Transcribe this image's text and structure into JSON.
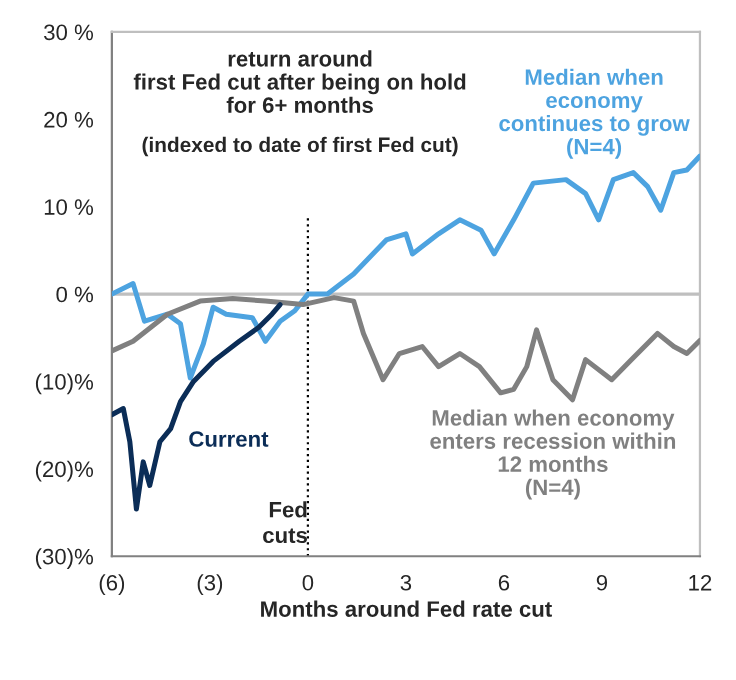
{
  "chart_data": {
    "type": "line",
    "title": "return around\nfirst Fed cut after being on hold\nfor 6+ months",
    "subtitle": "(indexed to date of first Fed cut)",
    "xlabel": "Months around Fed rate cut",
    "xlim": [
      -6,
      12
    ],
    "xticks": [
      {
        "value": -6,
        "label": "(6)"
      },
      {
        "value": -3,
        "label": "(3)"
      },
      0,
      3,
      6,
      9,
      12
    ],
    "ylim": [
      -30,
      30
    ],
    "yticks": [
      {
        "value": -30,
        "label": "(30)%"
      },
      {
        "value": -20,
        "label": "(20)%"
      },
      {
        "value": -10,
        "label": "(10)%"
      },
      {
        "value": 0,
        "label": "0 %"
      },
      {
        "value": 10,
        "label": "10 %"
      },
      {
        "value": 20,
        "label": "20 %"
      },
      {
        "value": 30,
        "label": "30 %"
      }
    ],
    "grid": false,
    "legend": false,
    "line_style": "solid",
    "ref_lines": [
      {
        "axis": "y",
        "value": 0,
        "label": null,
        "color": "#bfbfbf",
        "line_style": "solid"
      },
      {
        "axis": "x",
        "value": 0,
        "label": "Fed\ncuts",
        "color": "#000000",
        "line_style": "dotted"
      }
    ],
    "series": [
      {
        "name": "Median when\neconomy\ncontinues to grow\n(N=4)",
        "color": "#4da3e0",
        "x": [
          -6,
          -5.35,
          -5.0,
          -4.3,
          -3.9,
          -3.6,
          -3.2,
          -2.9,
          -2.5,
          -1.7,
          -1.3,
          -0.85,
          -0.4,
          0,
          0.6,
          1.4,
          2.4,
          3.0,
          3.2,
          4.0,
          4.65,
          5.3,
          5.7,
          6.3,
          6.9,
          7.9,
          8.5,
          8.9,
          9.35,
          9.96,
          10.4,
          10.8,
          11.2,
          11.6,
          12.0
        ],
        "values": [
          0,
          1.2,
          -3.1,
          -2.3,
          -3.4,
          -9.6,
          -5.7,
          -1.5,
          -2.3,
          -2.7,
          -5.4,
          -3.1,
          -1.9,
          0,
          0,
          2.3,
          6.2,
          6.9,
          4.6,
          6.9,
          8.5,
          7.3,
          4.6,
          8.5,
          12.7,
          13.1,
          11.5,
          8.5,
          13.1,
          13.9,
          12.3,
          9.6,
          13.9,
          14.2,
          15.8
        ]
      },
      {
        "name": "Median when economy\nenters recession within\n12 months\n(N=4)",
        "color": "#808080",
        "x": [
          -6,
          -5.35,
          -4.3,
          -3.3,
          -2.3,
          -1.3,
          -0.15,
          0.8,
          1.4,
          1.7,
          2.3,
          2.8,
          3.5,
          4.0,
          4.65,
          5.25,
          5.9,
          6.3,
          6.7,
          7.0,
          7.5,
          8.1,
          8.5,
          9.3,
          9.9,
          10.7,
          11.2,
          11.6,
          12.0
        ],
        "values": [
          -6.5,
          -5.4,
          -2.3,
          -0.8,
          -0.5,
          -0.8,
          -1.2,
          -0.4,
          -0.8,
          -4.5,
          -9.8,
          -6.8,
          -6.0,
          -8.3,
          -6.8,
          -8.3,
          -11.3,
          -10.9,
          -8.3,
          -4.1,
          -9.8,
          -12.1,
          -7.5,
          -9.8,
          -7.5,
          -4.5,
          -6.0,
          -6.8,
          -5.3
        ]
      },
      {
        "name": "Current",
        "color": "#0b2d57",
        "x": [
          -6.0,
          -5.65,
          -5.45,
          -5.25,
          -5.04,
          -4.84,
          -4.53,
          -4.2,
          -3.9,
          -3.5,
          -2.9,
          -2.1,
          -1.5,
          -1.1,
          -0.85
        ],
        "values": [
          -13.8,
          -13.1,
          -16.9,
          -24.6,
          -19.2,
          -21.9,
          -16.9,
          -15.4,
          -12.3,
          -10.0,
          -7.7,
          -5.4,
          -3.8,
          -2.3,
          -1.2
        ]
      }
    ]
  }
}
